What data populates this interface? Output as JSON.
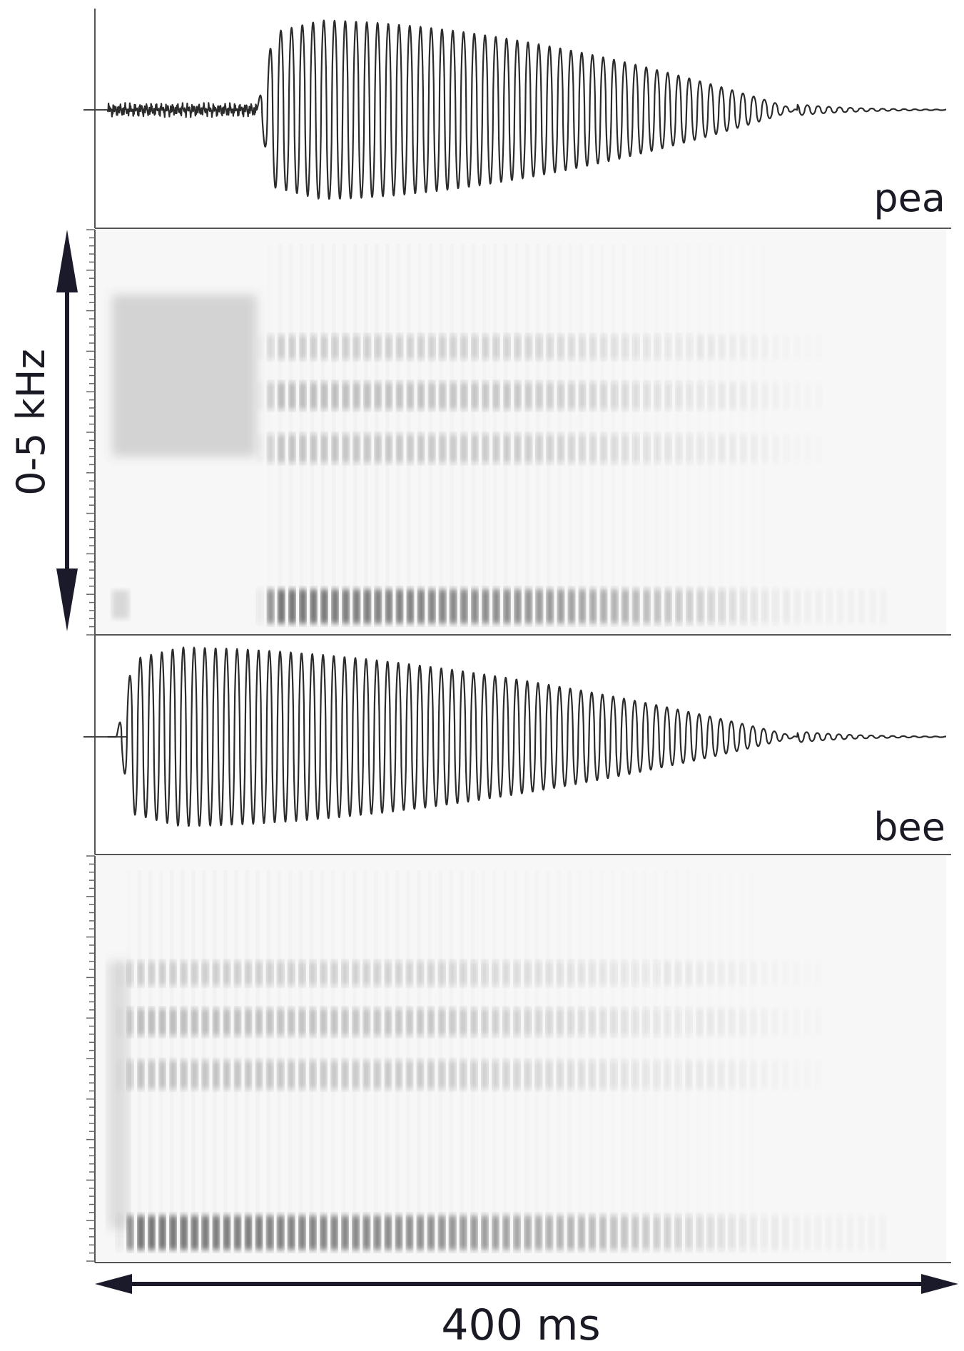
{
  "figure": {
    "words": [
      {
        "label": "pea",
        "onset_ms": 6,
        "voicing_onset_ms": 76,
        "waveform_peak": 0.95,
        "noise_burst": true
      },
      {
        "label": "bee",
        "onset_ms": 6,
        "voicing_onset_ms": 10,
        "waveform_peak": 0.95,
        "noise_burst": false
      }
    ],
    "frequency_axis": {
      "label": "0-5 kHz",
      "min_khz": 0,
      "max_khz": 5
    },
    "time_axis": {
      "label": "400 ms",
      "min_ms": 0,
      "max_ms": 400
    },
    "colors": {
      "ink": "#2b2b2b",
      "axis": "#555555",
      "arrow": "#1a1a2a",
      "spectrogram_bg": "#f7f7f7"
    }
  }
}
